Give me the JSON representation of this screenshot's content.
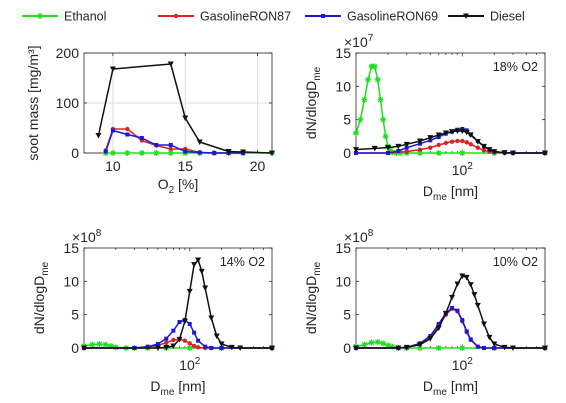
{
  "legend": {
    "placement": "top",
    "entries": [
      {
        "name": "Ethanol",
        "color": "#22dd22",
        "marker": "star"
      },
      {
        "name": "GasolineRON87",
        "color": "#dd2222",
        "marker": "dot"
      },
      {
        "name": "GasolineRON69",
        "color": "#1a1ad6",
        "marker": "square"
      },
      {
        "name": "Diesel",
        "color": "#111111",
        "marker": "triangle-down"
      }
    ]
  },
  "chart_data": [
    {
      "id": "soot",
      "type": "line",
      "ylabel": "soot mass [mg/m³]",
      "xlabel_main": "O",
      "xlabel_sub": "2",
      "xlabel_tail": " [%]",
      "xlim": [
        8,
        21
      ],
      "ylim": [
        0,
        200
      ],
      "xticks": [
        10,
        15,
        20
      ],
      "yticks": [
        0,
        100,
        200
      ],
      "grid": true,
      "series": [
        {
          "name": "Ethanol",
          "x": [
            9.5,
            10,
            11,
            12,
            13,
            14,
            15,
            16,
            17,
            18,
            19,
            21
          ],
          "y": [
            0,
            0,
            0,
            0,
            0,
            0,
            0,
            0,
            0,
            0,
            0,
            0
          ]
        },
        {
          "name": "GasolineRON87",
          "x": [
            9.5,
            10,
            11,
            12,
            13,
            14,
            15,
            16,
            17,
            18,
            19
          ],
          "y": [
            5,
            48,
            48,
            25,
            15,
            8,
            8,
            1,
            0,
            0,
            0
          ]
        },
        {
          "name": "GasolineRON69",
          "x": [
            9.5,
            10,
            11,
            12,
            13,
            14,
            15,
            16,
            17,
            18,
            19
          ],
          "y": [
            3,
            45,
            37,
            30,
            16,
            16,
            3,
            1,
            0,
            0,
            0
          ]
        },
        {
          "name": "Diesel",
          "x": [
            9,
            10,
            14,
            15,
            16,
            18,
            19,
            21
          ],
          "y": [
            35,
            168,
            178,
            70,
            22,
            3,
            2,
            0
          ]
        }
      ]
    },
    {
      "id": "o18",
      "type": "line",
      "annotation": "18% O2",
      "exponent_base": "×10",
      "exponent": "7",
      "ylabel": "dN/dlogD",
      "ylabel_sub": "me",
      "xlabel_main": "D",
      "xlabel_sub": "me",
      "xlabel_tail": " [nm]",
      "xscale": "log",
      "xlim": [
        10,
        600
      ],
      "ylim": [
        0,
        15
      ],
      "xticks": [
        100
      ],
      "xtick_base": "10",
      "xtick_exp": "2",
      "yticks": [
        0,
        5,
        10,
        15
      ],
      "series": [
        {
          "name": "Ethanol",
          "x": [
            10,
            11,
            12,
            13,
            14,
            15,
            16,
            17,
            18,
            19,
            20,
            21,
            22,
            24,
            26,
            30,
            40,
            60,
            100,
            200,
            600
          ],
          "y": [
            3,
            5,
            8,
            11,
            13,
            13,
            11,
            8,
            5,
            2.5,
            1,
            0.4,
            0.1,
            0,
            0,
            0,
            0,
            0,
            0,
            0,
            0
          ]
        },
        {
          "name": "GasolineRON87",
          "x": [
            10,
            20,
            30,
            40,
            50,
            60,
            70,
            80,
            90,
            100,
            110,
            120,
            140,
            160,
            180,
            200,
            250,
            300,
            600
          ],
          "y": [
            0,
            0,
            0.2,
            0.5,
            0.8,
            1.2,
            1.5,
            1.7,
            1.8,
            1.8,
            1.6,
            1.3,
            0.8,
            0.4,
            0.2,
            0.1,
            0,
            0,
            0
          ]
        },
        {
          "name": "GasolineRON69",
          "x": [
            10,
            20,
            25,
            30,
            40,
            50,
            60,
            70,
            80,
            90,
            100,
            110,
            120,
            140,
            160,
            180,
            200,
            250,
            300,
            600
          ],
          "y": [
            0,
            0,
            0.3,
            0.8,
            1.4,
            1.9,
            2.4,
            2.9,
            3.2,
            3.5,
            3.6,
            3.4,
            2.8,
            1.8,
            1,
            0.5,
            0.2,
            0.05,
            0,
            0
          ]
        },
        {
          "name": "Diesel",
          "x": [
            10,
            15,
            20,
            25,
            30,
            40,
            50,
            60,
            70,
            80,
            90,
            100,
            110,
            120,
            140,
            160,
            180,
            200,
            250,
            300,
            600
          ],
          "y": [
            0.5,
            0.7,
            0.8,
            1,
            1.3,
            1.8,
            2.3,
            2.7,
            3,
            3.2,
            3.3,
            3.3,
            3.1,
            2.7,
            1.7,
            1,
            0.5,
            0.2,
            0.05,
            0,
            0
          ]
        }
      ]
    },
    {
      "id": "o14",
      "type": "line",
      "annotation": "14% O2",
      "exponent_base": "×10",
      "exponent": "8",
      "ylabel": "dN/dlogD",
      "ylabel_sub": "me",
      "xlabel_main": "D",
      "xlabel_sub": "me",
      "xlabel_tail": " [nm]",
      "xscale": "log",
      "xlim": [
        10,
        600
      ],
      "ylim": [
        0,
        15
      ],
      "xticks": [
        100
      ],
      "xtick_base": "10",
      "xtick_exp": "2",
      "yticks": [
        0,
        5,
        10,
        15
      ],
      "series": [
        {
          "name": "Ethanol",
          "x": [
            10,
            12,
            14,
            16,
            18,
            20,
            25,
            30,
            40,
            60,
            100,
            200,
            600
          ],
          "y": [
            0.3,
            0.5,
            0.6,
            0.5,
            0.3,
            0.1,
            0,
            0,
            0,
            0,
            0,
            0,
            0
          ]
        },
        {
          "name": "GasolineRON87",
          "x": [
            10,
            30,
            40,
            50,
            60,
            70,
            80,
            90,
            100,
            110,
            120,
            140,
            160,
            200,
            600
          ],
          "y": [
            0,
            0,
            0.1,
            0.4,
            0.8,
            1.2,
            1.3,
            1.1,
            0.7,
            0.3,
            0.1,
            0,
            0,
            0,
            0
          ]
        },
        {
          "name": "GasolineRON69",
          "x": [
            10,
            30,
            40,
            50,
            60,
            70,
            80,
            90,
            100,
            110,
            120,
            140,
            160,
            200,
            600
          ],
          "y": [
            0,
            0,
            0.2,
            0.6,
            1.4,
            2.6,
            3.9,
            4.2,
            3.6,
            2.3,
            1.1,
            0.2,
            0,
            0,
            0
          ]
        },
        {
          "name": "Diesel",
          "x": [
            10,
            50,
            60,
            70,
            80,
            90,
            100,
            110,
            120,
            130,
            140,
            160,
            180,
            200,
            250,
            300,
            600
          ],
          "y": [
            0,
            0,
            0.1,
            0.3,
            1.3,
            4,
            8.5,
            12.5,
            13.2,
            11.5,
            9,
            4.5,
            1.8,
            0.6,
            0.1,
            0,
            0
          ]
        }
      ]
    },
    {
      "id": "o10",
      "type": "line",
      "annotation": "10% O2",
      "exponent_base": "×10",
      "exponent": "8",
      "ylabel": "dN/dlogD",
      "ylabel_sub": "me",
      "xlabel_main": "D",
      "xlabel_sub": "me",
      "xlabel_tail": " [nm]",
      "xscale": "log",
      "xlim": [
        10,
        600
      ],
      "ylim": [
        0,
        15
      ],
      "xticks": [
        100
      ],
      "xtick_base": "10",
      "xtick_exp": "2",
      "yticks": [
        0,
        5,
        10,
        15
      ],
      "series": [
        {
          "name": "Ethanol",
          "x": [
            10,
            12,
            14,
            16,
            18,
            20,
            22,
            25,
            30,
            40,
            60,
            100,
            200,
            600
          ],
          "y": [
            0.2,
            0.5,
            0.8,
            0.9,
            0.7,
            0.4,
            0.2,
            0,
            0,
            0,
            0,
            0,
            0,
            0
          ]
        },
        {
          "name": "GasolineRON87",
          "x": [
            10,
            25,
            30,
            40,
            50,
            60,
            70,
            80,
            90,
            100,
            110,
            120,
            140,
            160,
            200,
            600
          ],
          "y": [
            0,
            0,
            0.1,
            0.6,
            1.7,
            3.4,
            5,
            5.9,
            5.5,
            4,
            2.4,
            1.2,
            0.2,
            0,
            0,
            0
          ]
        },
        {
          "name": "GasolineRON69",
          "x": [
            10,
            25,
            30,
            40,
            50,
            60,
            70,
            80,
            90,
            100,
            110,
            120,
            140,
            160,
            200,
            600
          ],
          "y": [
            0,
            0,
            0.1,
            0.7,
            1.8,
            3.6,
            5.2,
            6,
            5.6,
            4.2,
            2.5,
            1.3,
            0.2,
            0,
            0,
            0
          ]
        },
        {
          "name": "Diesel",
          "x": [
            10,
            25,
            30,
            40,
            50,
            60,
            70,
            80,
            90,
            100,
            110,
            120,
            130,
            140,
            160,
            180,
            200,
            250,
            300,
            600
          ],
          "y": [
            0,
            0,
            0.1,
            0.5,
            1.4,
            3,
            5.2,
            7.6,
            9.6,
            10.8,
            10.6,
            9.5,
            8,
            6.4,
            3.6,
            1.6,
            0.6,
            0.1,
            0,
            0
          ]
        }
      ]
    }
  ]
}
